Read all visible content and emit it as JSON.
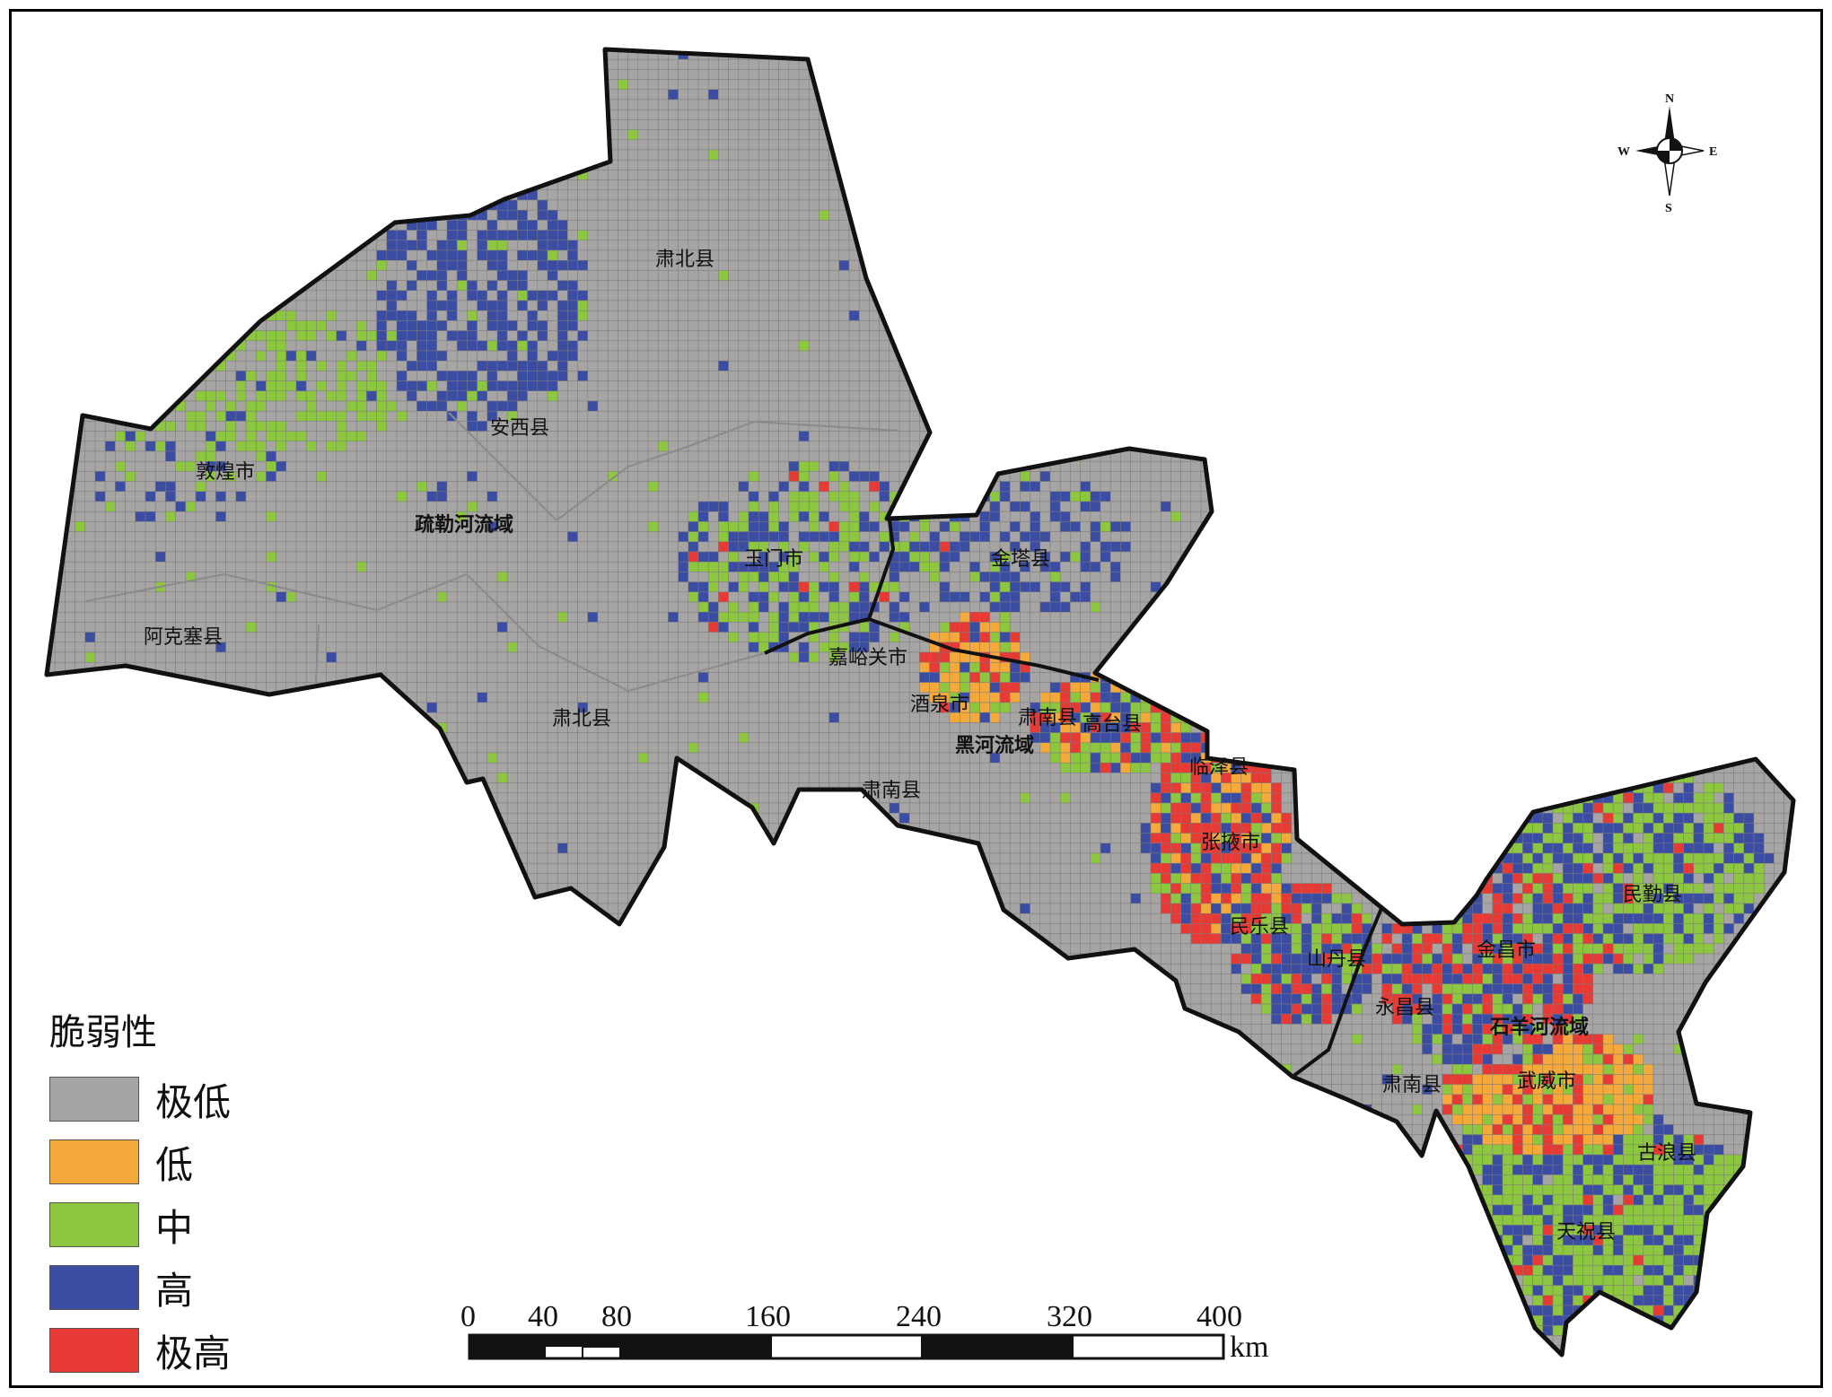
{
  "colors": {
    "very_low": "#a7a4a4",
    "low": "#f5a93b",
    "medium": "#8dc63f",
    "high": "#3b4da3",
    "very_high": "#e83a34",
    "boundary": "#111111",
    "grid_line": "#7a7a7a"
  },
  "legend": {
    "title": "脆弱性",
    "items": [
      {
        "label": "极低",
        "color": "#a7a4a4"
      },
      {
        "label": "低",
        "color": "#f5a93b"
      },
      {
        "label": "中",
        "color": "#8dc63f"
      },
      {
        "label": "高",
        "color": "#3b4da3"
      },
      {
        "label": "极高",
        "color": "#e83a34"
      }
    ]
  },
  "compass": {
    "n": "N",
    "s": "S",
    "e": "E",
    "w": "W"
  },
  "scale_bar": {
    "ticks": [
      "0",
      "40",
      "80",
      "160",
      "240",
      "320",
      "400"
    ],
    "unit": "km"
  },
  "places": {
    "subei_north": "肃北县",
    "anxi": "安西县",
    "dunhuang": "敦煌市",
    "shulehe": "疏勒河流域",
    "yumen": "玉门市",
    "jinta": "金塔县",
    "akesai": "阿克塞县",
    "subei_south": "肃北县",
    "jiayuguan": "嘉峪关市",
    "jiuquan": "酒泉市",
    "sunan_a": "肃南县",
    "gaotai": "高台县",
    "heihe": "黑河流域",
    "linze": "临泽县",
    "sunan_b": "肃南县",
    "zhangye": "张掖市",
    "minle": "民乐县",
    "shandan": "山丹县",
    "jinchang": "金昌市",
    "minqin": "民勤县",
    "yongchang": "永昌县",
    "shiyanghe": "石羊河流域",
    "sunan_c": "肃南县",
    "wuwei": "武威市",
    "gulang": "古浪县",
    "tianzhu": "天祝县"
  }
}
